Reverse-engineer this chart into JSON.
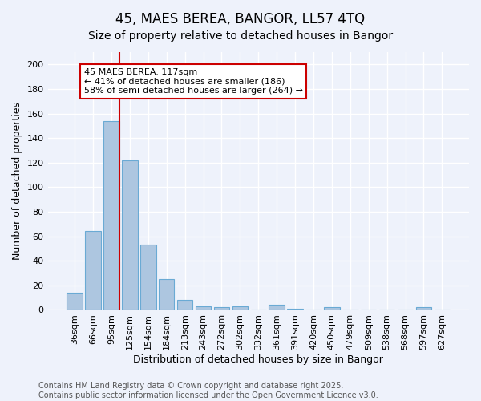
{
  "title": "45, MAES BEREA, BANGOR, LL57 4TQ",
  "subtitle": "Size of property relative to detached houses in Bangor",
  "xlabel": "Distribution of detached houses by size in Bangor",
  "ylabel": "Number of detached properties",
  "categories": [
    "36sqm",
    "66sqm",
    "95sqm",
    "125sqm",
    "154sqm",
    "184sqm",
    "213sqm",
    "243sqm",
    "272sqm",
    "302sqm",
    "332sqm",
    "361sqm",
    "391sqm",
    "420sqm",
    "450sqm",
    "479sqm",
    "509sqm",
    "538sqm",
    "568sqm",
    "597sqm",
    "627sqm"
  ],
  "values": [
    14,
    64,
    154,
    122,
    53,
    25,
    8,
    3,
    2,
    3,
    0,
    4,
    1,
    0,
    2,
    0,
    0,
    0,
    0,
    2,
    0
  ],
  "bar_color": "#adc6e0",
  "bar_edge_color": "#6aaad4",
  "vline_x_idx": 2,
  "vline_color": "#cc0000",
  "annotation_text": "45 MAES BEREA: 117sqm\n← 41% of detached houses are smaller (186)\n58% of semi-detached houses are larger (264) →",
  "annotation_box_color": "#ffffff",
  "annotation_box_edge": "#cc0000",
  "ylim": [
    0,
    210
  ],
  "yticks": [
    0,
    20,
    40,
    60,
    80,
    100,
    120,
    140,
    160,
    180,
    200
  ],
  "footer_text": "Contains HM Land Registry data © Crown copyright and database right 2025.\nContains public sector information licensed under the Open Government Licence v3.0.",
  "bg_color": "#eef2fb",
  "grid_color": "#ffffff",
  "title_fontsize": 12,
  "subtitle_fontsize": 10,
  "axis_label_fontsize": 9,
  "tick_fontsize": 8,
  "footer_fontsize": 7,
  "annotation_fontsize": 8
}
